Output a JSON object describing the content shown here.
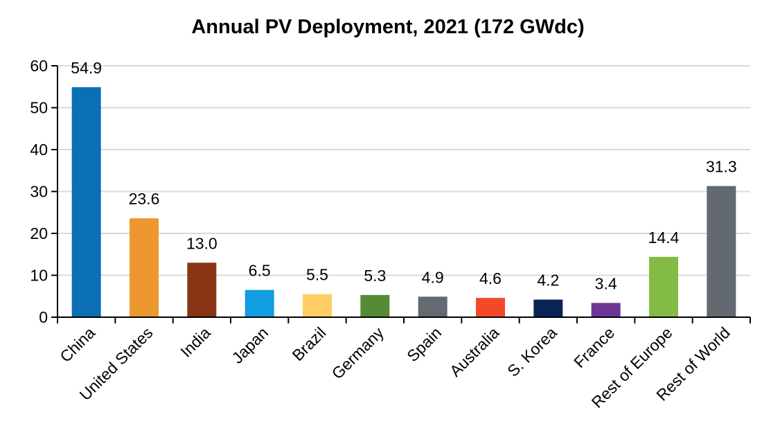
{
  "chart_data": {
    "type": "bar",
    "title": "Annual PV Deployment, 2021 (172 GWdc)",
    "xlabel": "",
    "ylabel": "",
    "ylim": [
      0,
      60
    ],
    "yticks": [
      0,
      10,
      20,
      30,
      40,
      50,
      60
    ],
    "grid": true,
    "legend": "none",
    "categories": [
      "China",
      "United States",
      "India",
      "Japan",
      "Brazil",
      "Germany",
      "Spain",
      "Australia",
      "S. Korea",
      "France",
      "Rest of Europe",
      "Rest of World"
    ],
    "values": [
      54.9,
      23.6,
      13.0,
      6.5,
      5.5,
      5.3,
      4.9,
      4.6,
      4.2,
      3.4,
      14.4,
      31.3
    ],
    "data_labels": [
      "54.9",
      "23.6",
      "13.0",
      "6.5",
      "5.5",
      "5.3",
      "4.9",
      "4.6",
      "4.2",
      "3.4",
      "14.4",
      "31.3"
    ],
    "colors": [
      "#0a6fb3",
      "#ed9731",
      "#873514",
      "#119ddf",
      "#fecd65",
      "#558b36",
      "#636a72",
      "#f24a29",
      "#0b2456",
      "#6d3595",
      "#84bb45",
      "#626971"
    ],
    "gridline_color": "#d9d9d9"
  }
}
